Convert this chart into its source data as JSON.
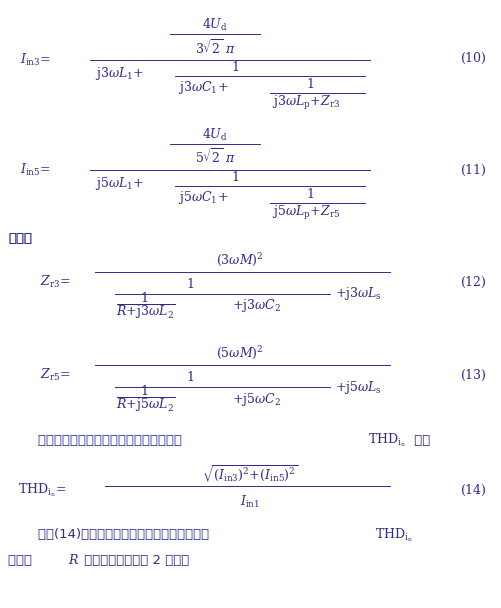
{
  "background_color": "#ffffff",
  "text_color": "#2c2c8c",
  "figsize": [
    5.02,
    6.08
  ],
  "dpi": 100,
  "eq10_num": "(10)",
  "eq11_num": "(11)",
  "eq12_num": "(12)",
  "eq13_num": "(13)",
  "eq14_num": "(14)"
}
